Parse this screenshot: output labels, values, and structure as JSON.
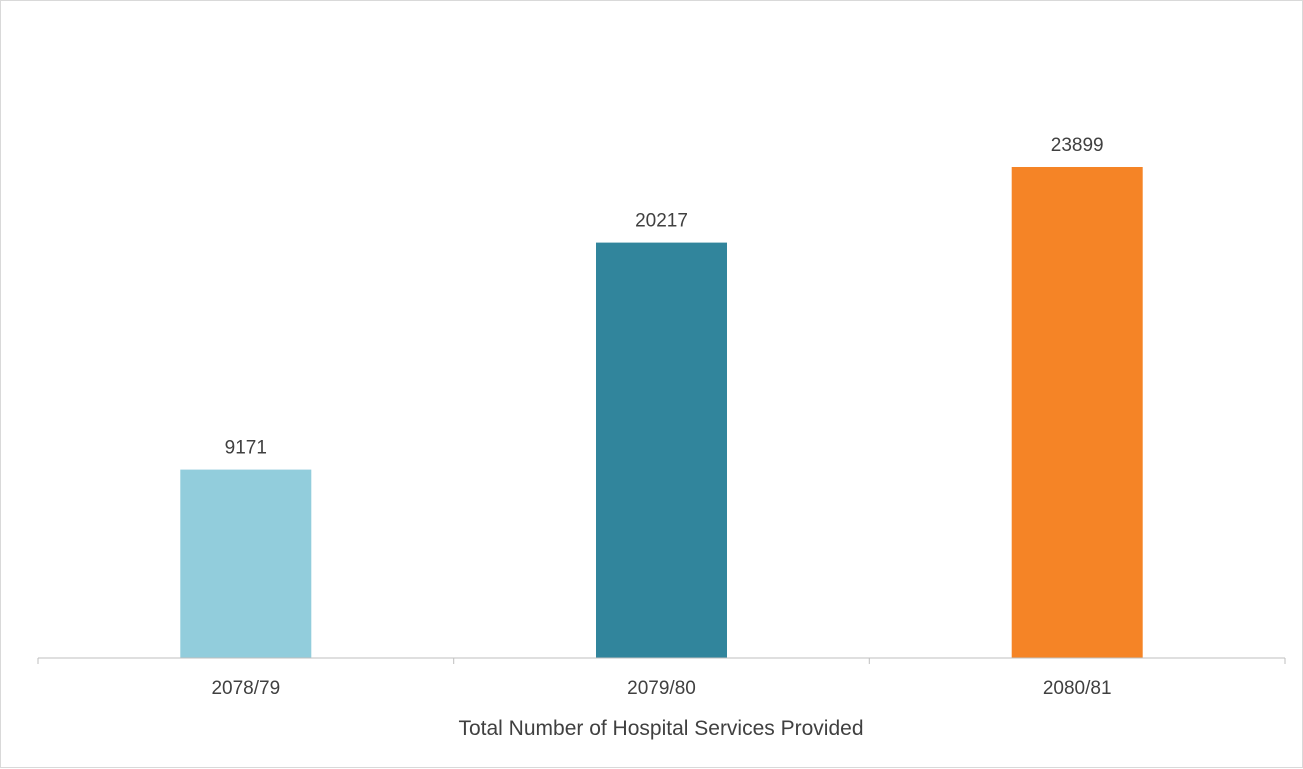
{
  "chart_data": {
    "type": "bar",
    "categories": [
      "2078/79",
      "2079/80",
      "2080/81"
    ],
    "values": [
      9171,
      20217,
      23899
    ],
    "bar_colors": [
      "#92CDDC",
      "#31859C",
      "#F58426"
    ],
    "title": "",
    "xlabel": "Total Number of Hospital Services Provided",
    "ylabel": "",
    "ylim": [
      0,
      25000
    ],
    "grid": false,
    "legend": "none",
    "data_labels": true
  }
}
